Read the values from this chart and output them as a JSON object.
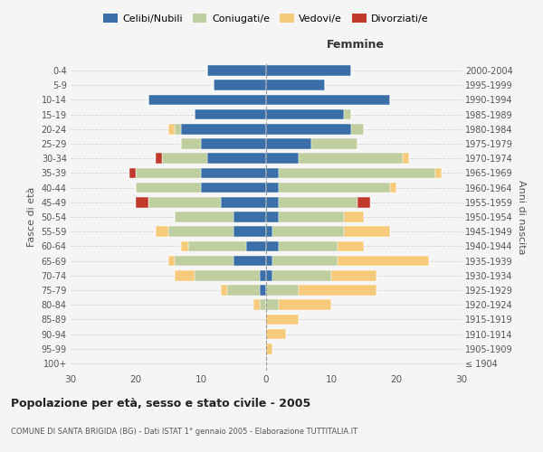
{
  "age_groups": [
    "100+",
    "95-99",
    "90-94",
    "85-89",
    "80-84",
    "75-79",
    "70-74",
    "65-69",
    "60-64",
    "55-59",
    "50-54",
    "45-49",
    "40-44",
    "35-39",
    "30-34",
    "25-29",
    "20-24",
    "15-19",
    "10-14",
    "5-9",
    "0-4"
  ],
  "birth_years": [
    "≤ 1904",
    "1905-1909",
    "1910-1914",
    "1915-1919",
    "1920-1924",
    "1925-1929",
    "1930-1934",
    "1935-1939",
    "1940-1944",
    "1945-1949",
    "1950-1954",
    "1955-1959",
    "1960-1964",
    "1965-1969",
    "1970-1974",
    "1975-1979",
    "1980-1984",
    "1985-1989",
    "1990-1994",
    "1995-1999",
    "2000-2004"
  ],
  "maschi": {
    "celibi": [
      0,
      0,
      0,
      0,
      0,
      1,
      1,
      5,
      3,
      5,
      5,
      7,
      10,
      10,
      9,
      10,
      13,
      11,
      18,
      8,
      9
    ],
    "coniugati": [
      0,
      0,
      0,
      0,
      1,
      5,
      10,
      9,
      9,
      10,
      9,
      11,
      10,
      10,
      7,
      3,
      1,
      0,
      0,
      0,
      0
    ],
    "vedovi": [
      0,
      0,
      0,
      0,
      1,
      1,
      3,
      1,
      1,
      2,
      0,
      0,
      0,
      0,
      0,
      0,
      1,
      0,
      0,
      0,
      0
    ],
    "divorziati": [
      0,
      0,
      0,
      0,
      0,
      0,
      0,
      0,
      0,
      0,
      0,
      2,
      0,
      1,
      1,
      0,
      0,
      0,
      0,
      0,
      0
    ]
  },
  "femmine": {
    "nubili": [
      0,
      0,
      0,
      0,
      0,
      0,
      1,
      1,
      2,
      1,
      2,
      2,
      2,
      2,
      5,
      7,
      13,
      12,
      19,
      9,
      13
    ],
    "coniugate": [
      0,
      0,
      0,
      0,
      2,
      5,
      9,
      10,
      9,
      11,
      10,
      12,
      17,
      24,
      16,
      7,
      2,
      1,
      0,
      0,
      0
    ],
    "vedove": [
      0,
      1,
      3,
      5,
      8,
      12,
      7,
      14,
      4,
      7,
      3,
      0,
      1,
      1,
      1,
      0,
      0,
      0,
      0,
      0,
      0
    ],
    "divorziate": [
      0,
      0,
      0,
      0,
      0,
      0,
      0,
      0,
      0,
      0,
      0,
      2,
      0,
      0,
      0,
      0,
      0,
      0,
      0,
      0,
      0
    ]
  },
  "colors": {
    "celibi": "#3A6EA8",
    "coniugati": "#BFCE9E",
    "vedovi": "#F5CA7A",
    "divorziati": "#C0392B"
  },
  "title": "Popolazione per età, sesso e stato civile - 2005",
  "subtitle": "COMUNE DI SANTA BRIGIDA (BG) - Dati ISTAT 1° gennaio 2005 - Elaborazione TUTTITALIA.IT",
  "xlim": 30,
  "bg_color": "#f5f5f5",
  "grid_color": "#cccccc"
}
